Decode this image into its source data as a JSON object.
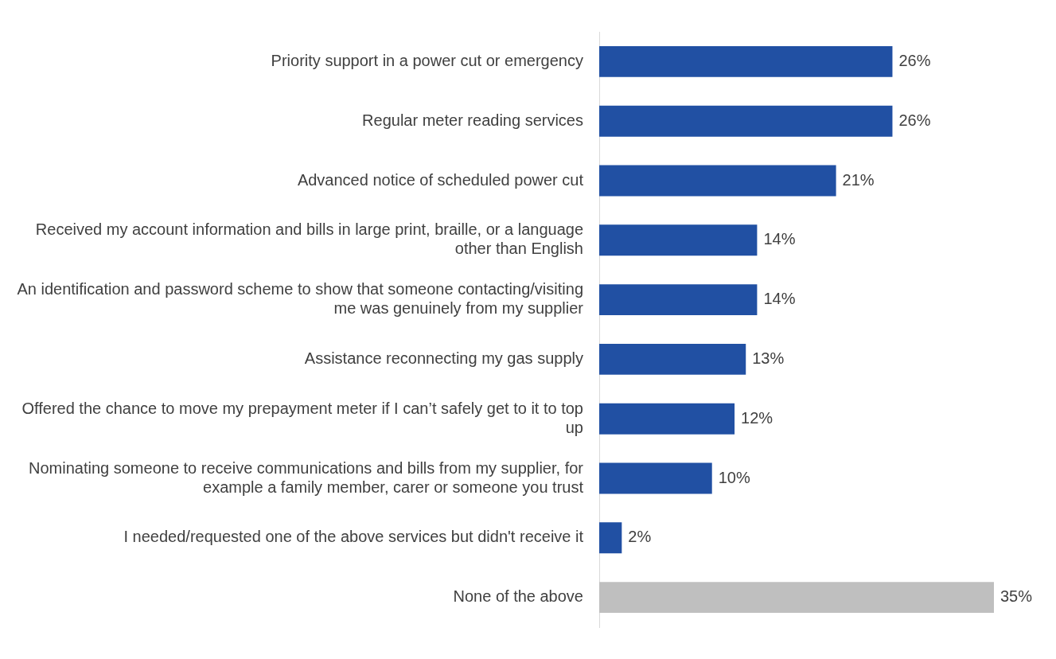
{
  "chart_data": {
    "type": "bar",
    "orientation": "horizontal",
    "categories": [
      "Priority support in a power cut or emergency",
      "Regular meter reading services",
      "Advanced notice of scheduled power cut",
      "Received my account information and bills in large print, braille, or a language other than English",
      "An identification and password scheme to show that someone contacting/visiting me was genuinely from my supplier",
      "Assistance reconnecting my gas supply",
      "Offered the chance to move my prepayment meter if I can’t safely get to it to top up",
      "Nominating someone to receive communications and bills from my supplier, for example a family member, carer or someone you trust",
      "I needed/requested one of the above services but didn't receive it",
      "None of the above"
    ],
    "values": [
      26,
      26,
      21,
      14,
      14,
      13,
      12,
      10,
      2,
      35
    ],
    "colors": [
      "#2150a3",
      "#2150a3",
      "#2150a3",
      "#2150a3",
      "#2150a3",
      "#2150a3",
      "#2150a3",
      "#2150a3",
      "#2150a3",
      "#bfbfbf"
    ],
    "value_labels": [
      "26%",
      "26%",
      "21%",
      "14%",
      "14%",
      "13%",
      "12%",
      "10%",
      "2%",
      "35%"
    ],
    "grid": false,
    "legend": false
  }
}
